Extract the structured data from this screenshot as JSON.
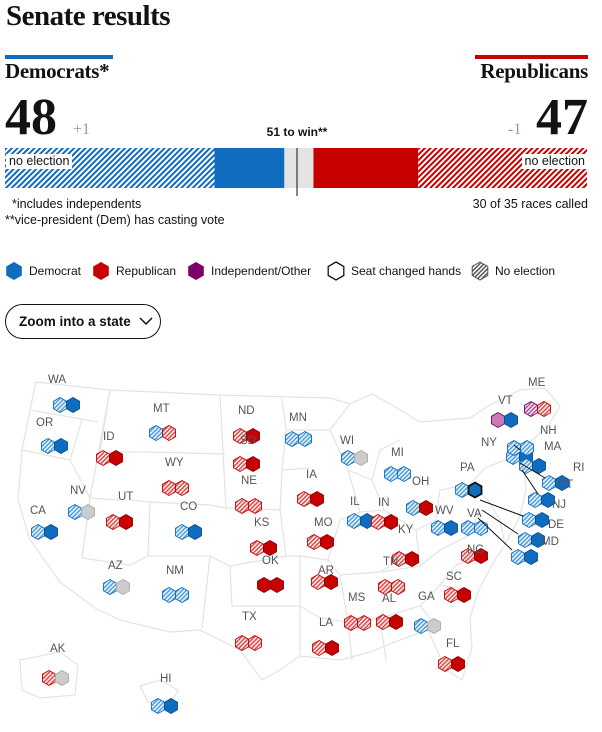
{
  "title": "Senate results",
  "democrats": {
    "name": "Democrats*",
    "seats": "48",
    "change": "+1",
    "no_election": "no election"
  },
  "republicans": {
    "name": "Republicans",
    "seats": "47",
    "change": "-1",
    "no_election": "no election"
  },
  "to_win": "51 to win**",
  "footnote_1": "*includes independents",
  "footnote_2": "**vice-president (Dem) has casting vote",
  "races_called": "30 of 35 races called",
  "legend": [
    {
      "label": "Democrat",
      "icon": "dem-hex-icon"
    },
    {
      "label": "Republican",
      "icon": "rep-hex-icon"
    },
    {
      "label": "Independent/Other",
      "icon": "ind-hex-icon"
    },
    {
      "label": "Seat changed hands",
      "icon": "changed-hex-icon"
    },
    {
      "label": "No election",
      "icon": "hatched-hex-icon"
    }
  ],
  "zoom_label": "Zoom into a state",
  "colors": {
    "dem": "#0f6cbf",
    "dem_light": "#7ab7e6",
    "rep": "#c70000",
    "rep_light": "#e58f8f",
    "ind": "#7d0068",
    "ind_light": "#c77bb9",
    "grey": "#cccccc"
  },
  "chart_data": {
    "type": "seat-bar",
    "total_seats": 100,
    "seats_to_win": 51,
    "segments": [
      {
        "party": "Democrat",
        "status": "no election",
        "seats": 36
      },
      {
        "party": "Democrat",
        "status": "elected",
        "seats": 12
      },
      {
        "party": "Undeclared",
        "status": "uncalled",
        "seats": 5
      },
      {
        "party": "Republican",
        "status": "elected",
        "seats": 18
      },
      {
        "party": "Republican",
        "status": "no election",
        "seats": 29
      }
    ],
    "states": [
      {
        "abbr": "WA",
        "seats": [
          "dem-ne",
          "dem"
        ]
      },
      {
        "abbr": "OR",
        "seats": [
          "dem-ne",
          "dem"
        ]
      },
      {
        "abbr": "CA",
        "seats": [
          "dem-ne",
          "dem"
        ]
      },
      {
        "abbr": "NV",
        "seats": [
          "dem-ne",
          "grey"
        ]
      },
      {
        "abbr": "ID",
        "seats": [
          "rep-ne",
          "rep"
        ]
      },
      {
        "abbr": "MT",
        "seats": [
          "dem-ne",
          "rep-ne"
        ]
      },
      {
        "abbr": "WY",
        "seats": [
          "rep-ne",
          "rep-ne"
        ]
      },
      {
        "abbr": "UT",
        "seats": [
          "rep-ne",
          "rep"
        ]
      },
      {
        "abbr": "CO",
        "seats": [
          "dem-ne",
          "dem"
        ]
      },
      {
        "abbr": "AZ",
        "seats": [
          "dem-ne",
          "grey"
        ]
      },
      {
        "abbr": "NM",
        "seats": [
          "dem-ne",
          "dem-ne"
        ]
      },
      {
        "abbr": "ND",
        "seats": [
          "rep-ne",
          "rep"
        ]
      },
      {
        "abbr": "SD",
        "seats": [
          "rep-ne",
          "rep"
        ]
      },
      {
        "abbr": "NE",
        "seats": [
          "rep-ne",
          "rep-ne"
        ]
      },
      {
        "abbr": "KS",
        "seats": [
          "rep-ne",
          "rep"
        ]
      },
      {
        "abbr": "OK",
        "seats": [
          "rep",
          "rep"
        ]
      },
      {
        "abbr": "TX",
        "seats": [
          "rep-ne",
          "rep-ne"
        ]
      },
      {
        "abbr": "MN",
        "seats": [
          "dem-ne",
          "dem-ne"
        ]
      },
      {
        "abbr": "IA",
        "seats": [
          "rep-ne",
          "rep"
        ]
      },
      {
        "abbr": "MO",
        "seats": [
          "rep-ne",
          "rep"
        ]
      },
      {
        "abbr": "AR",
        "seats": [
          "rep-ne",
          "rep"
        ]
      },
      {
        "abbr": "LA",
        "seats": [
          "rep-ne",
          "rep"
        ]
      },
      {
        "abbr": "WI",
        "seats": [
          "dem-ne",
          "grey"
        ]
      },
      {
        "abbr": "IL",
        "seats": [
          "dem-ne",
          "dem"
        ]
      },
      {
        "abbr": "MS",
        "seats": [
          "rep-ne",
          "rep-ne"
        ]
      },
      {
        "abbr": "MI",
        "seats": [
          "dem-ne",
          "dem-ne"
        ]
      },
      {
        "abbr": "IN",
        "seats": [
          "rep-ne",
          "rep"
        ]
      },
      {
        "abbr": "KY",
        "seats": [
          "rep-ne",
          "rep"
        ]
      },
      {
        "abbr": "TN",
        "seats": [
          "rep-ne",
          "rep-ne"
        ]
      },
      {
        "abbr": "AL",
        "seats": [
          "rep-ne",
          "rep"
        ]
      },
      {
        "abbr": "OH",
        "seats": [
          "dem-ne",
          "rep"
        ]
      },
      {
        "abbr": "WV",
        "seats": [
          "dem-ne",
          "dem"
        ]
      },
      {
        "abbr": "GA",
        "seats": [
          "dem-ne",
          "grey"
        ]
      },
      {
        "abbr": "FL",
        "seats": [
          "rep-ne",
          "rep"
        ]
      },
      {
        "abbr": "SC",
        "seats": [
          "rep-ne",
          "rep"
        ]
      },
      {
        "abbr": "NC",
        "seats": [
          "rep-ne",
          "rep"
        ]
      },
      {
        "abbr": "VA",
        "seats": [
          "dem-ne",
          "dem-ne"
        ]
      },
      {
        "abbr": "PA",
        "seats": [
          "dem-ne",
          "dem-changed"
        ]
      },
      {
        "abbr": "NY",
        "seats": [
          "dem-ne",
          "dem"
        ]
      },
      {
        "abbr": "VT",
        "seats": [
          "ind",
          "dem"
        ]
      },
      {
        "abbr": "ME",
        "seats": [
          "ind-ne",
          "rep-ne"
        ]
      },
      {
        "abbr": "NH",
        "seats": [
          "dem-ne",
          "dem-ne"
        ]
      },
      {
        "abbr": "MA",
        "seats": [
          "dem-ne",
          "dem"
        ]
      },
      {
        "abbr": "RI",
        "seats": [
          "dem-ne",
          "dem"
        ]
      },
      {
        "abbr": "CT",
        "seats": [
          "dem-ne",
          "dem"
        ]
      },
      {
        "abbr": "NJ",
        "seats": [
          "dem-ne",
          "dem"
        ]
      },
      {
        "abbr": "DE",
        "seats": [
          "dem-ne",
          "dem"
        ]
      },
      {
        "abbr": "MD",
        "seats": [
          "dem-ne",
          "dem"
        ]
      },
      {
        "abbr": "AK",
        "seats": [
          "rep-ne",
          "grey"
        ]
      },
      {
        "abbr": "HI",
        "seats": [
          "dem-ne",
          "dem"
        ]
      }
    ]
  }
}
